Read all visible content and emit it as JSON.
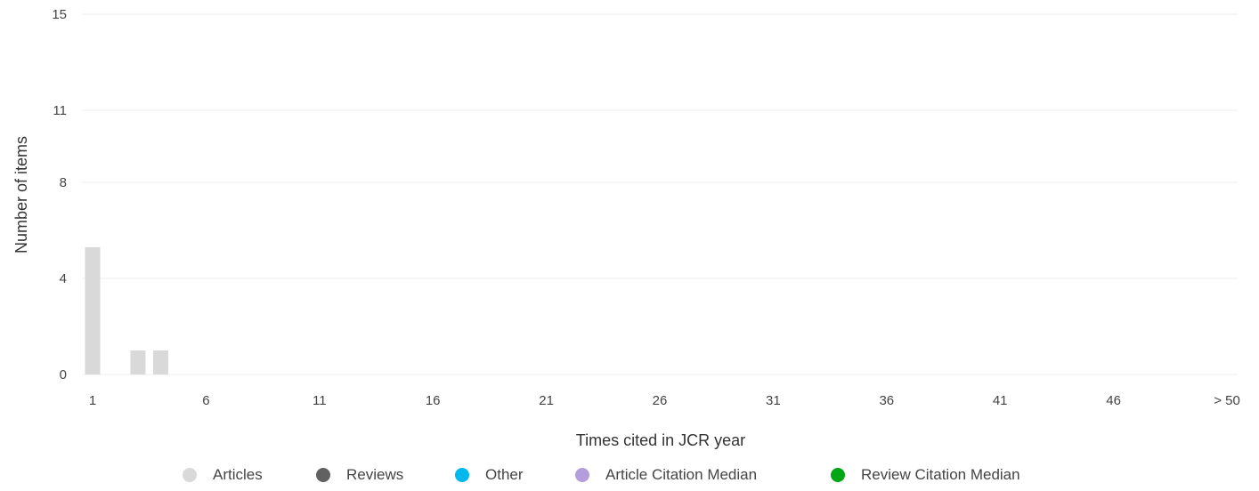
{
  "chart_data": {
    "type": "bar",
    "title": "",
    "xlabel": "Times cited in JCR year",
    "ylabel": "Number of items",
    "ylim": [
      0,
      15
    ],
    "y_ticks": [
      "0",
      "4",
      "8",
      "11",
      "15"
    ],
    "x_ticks": [
      "1",
      "6",
      "11",
      "16",
      "21",
      "26",
      "31",
      "36",
      "41",
      "46",
      "> 50"
    ],
    "categories": [
      "1",
      "2",
      "3",
      "4",
      "5",
      "6",
      "7",
      "8",
      "9",
      "10",
      "11",
      "12",
      "13",
      "14",
      "15",
      "16",
      "17",
      "18",
      "19",
      "20",
      "21",
      "22",
      "23",
      "24",
      "25",
      "26",
      "27",
      "28",
      "29",
      "30",
      "31",
      "32",
      "33",
      "34",
      "35",
      "36",
      "37",
      "38",
      "39",
      "40",
      "41",
      "42",
      "43",
      "44",
      "45",
      "46",
      "47",
      "48",
      "49",
      "50",
      "> 50"
    ],
    "series": [
      {
        "name": "Articles",
        "color": "#d9d9d9",
        "values": [
          5.3,
          0,
          1,
          1,
          0,
          0,
          0,
          0,
          0,
          0,
          0,
          0,
          0,
          0,
          0,
          0,
          0,
          0,
          0,
          0,
          0,
          0,
          0,
          0,
          0,
          0,
          0,
          0,
          0,
          0,
          0,
          0,
          0,
          0,
          0,
          0,
          0,
          0,
          0,
          0,
          0,
          0,
          0,
          0,
          0,
          0,
          0,
          0,
          0,
          0,
          0
        ]
      }
    ],
    "grid": true,
    "legend_position": "bottom",
    "legend": [
      {
        "label": "Articles",
        "color": "#d9d9d9"
      },
      {
        "label": "Reviews",
        "color": "#616161"
      },
      {
        "label": "Other",
        "color": "#00b8ec"
      },
      {
        "label": "Article Citation Median",
        "color": "#b39ddb"
      },
      {
        "label": "Review Citation Median",
        "color": "#00a614"
      }
    ]
  }
}
